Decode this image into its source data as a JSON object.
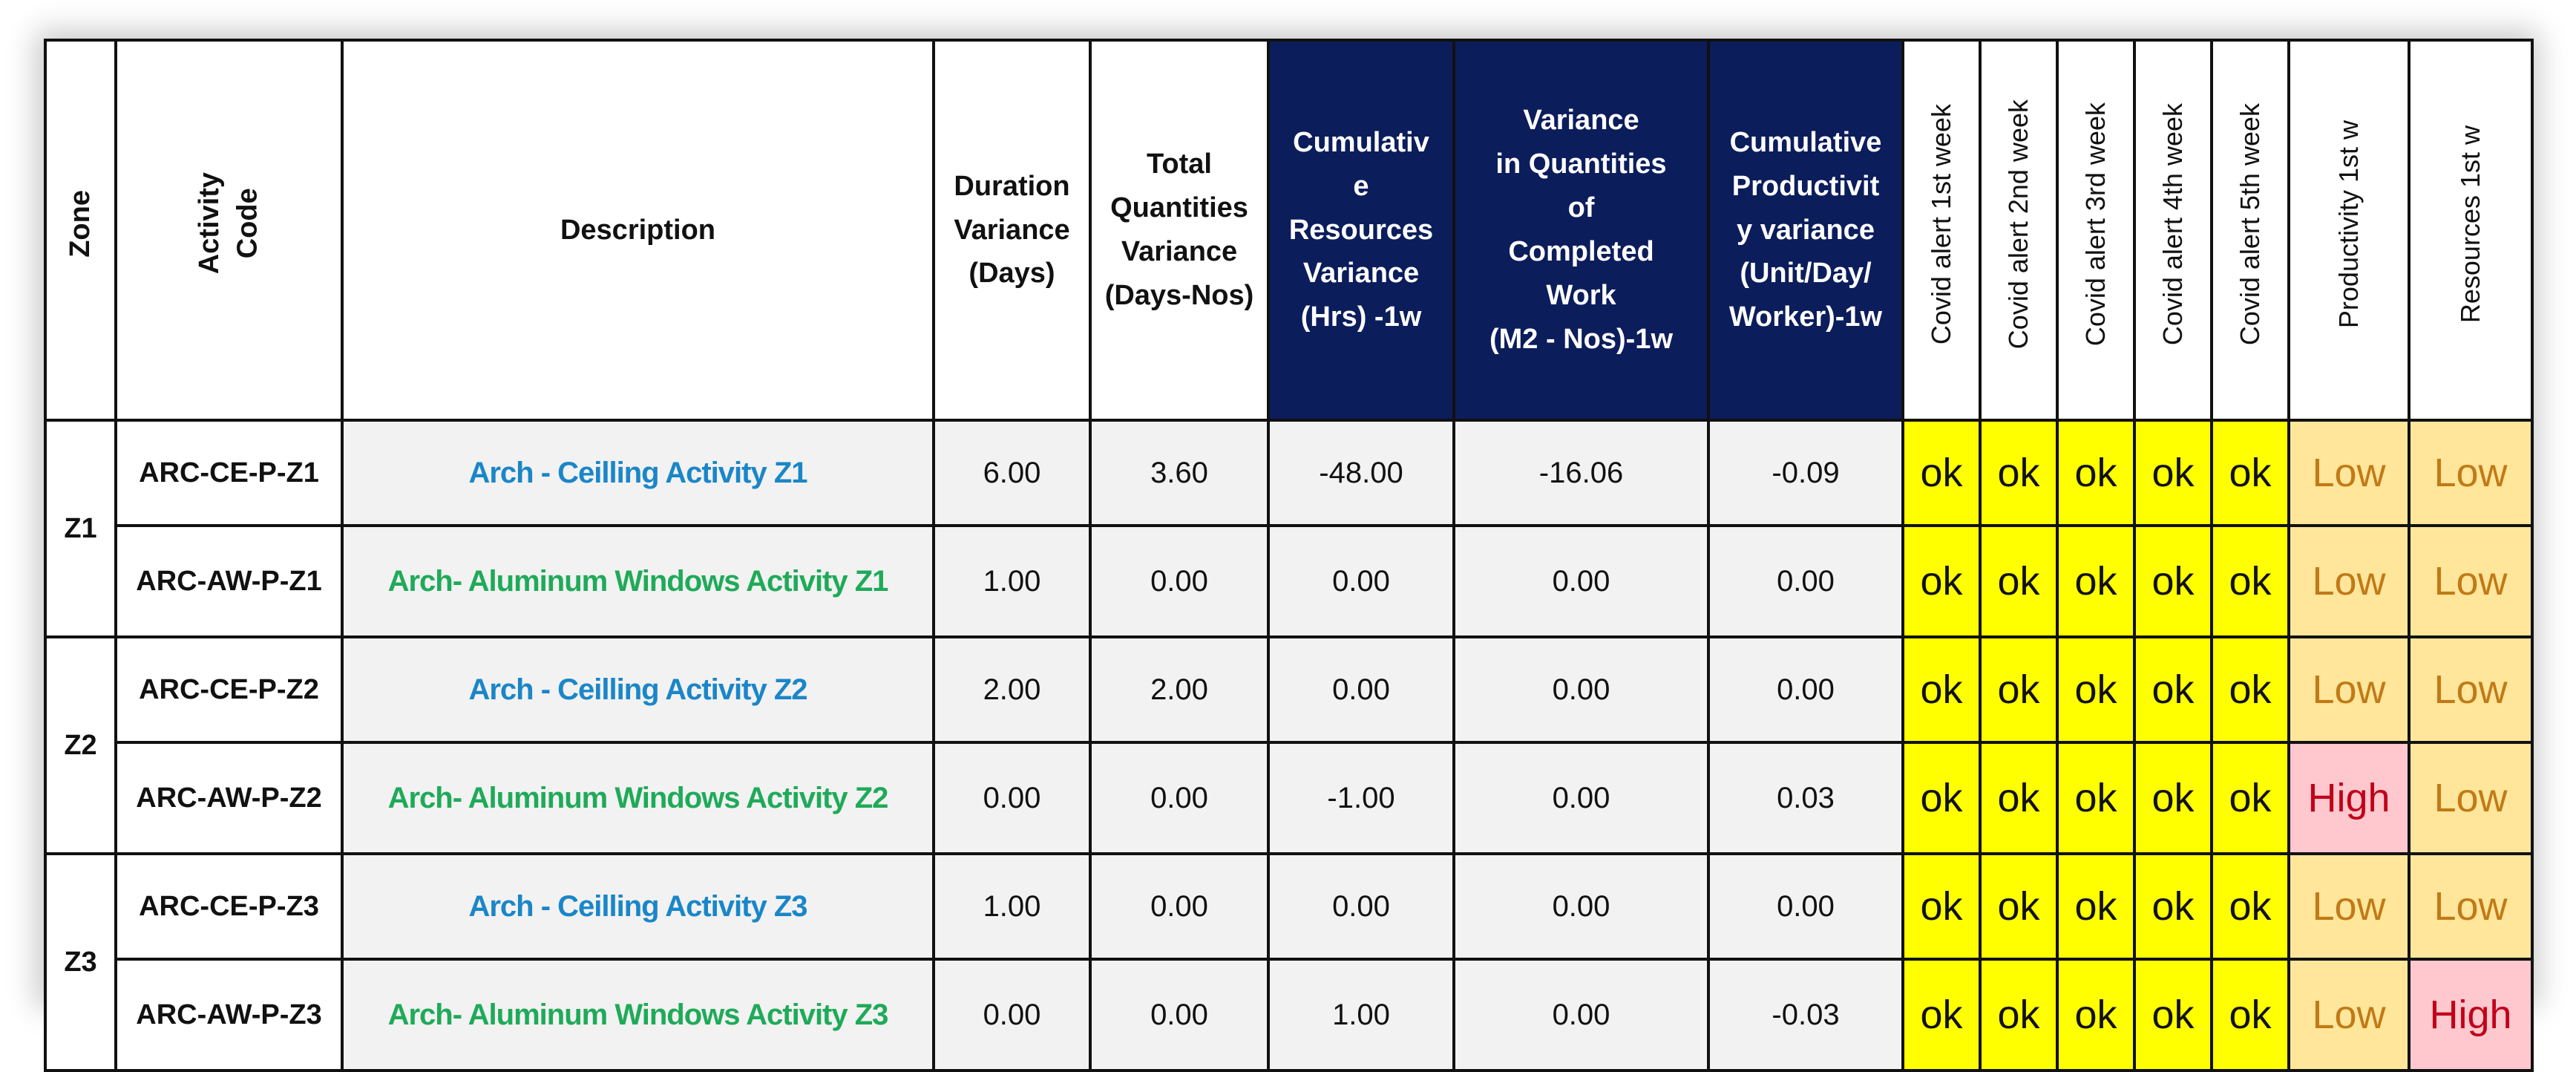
{
  "headers": {
    "zone": "Zone",
    "activity_code": [
      "Activity",
      "Code"
    ],
    "description": "Description",
    "duration_variance": [
      "Duration",
      "Variance",
      "(Days)"
    ],
    "total_quantities_variance": [
      "Total",
      "Quantities",
      "Variance",
      "(Days-Nos)"
    ],
    "cumulative_resources_variance": [
      "Cumulativ",
      "e",
      "Resources",
      "Variance",
      "(Hrs) -1w"
    ],
    "variance_quantities_completed": [
      "Variance",
      "in Quantities",
      "of",
      "Completed",
      "Work",
      "(M2 - Nos)-1w"
    ],
    "cumulative_productivity_variance": [
      "Cumulative",
      "Productivit",
      "y variance",
      "(Unit/Day/",
      "Worker)-1w"
    ],
    "covid_alert_1": "Covid alert 1st week",
    "covid_alert_2": "Covid alert 2nd week",
    "covid_alert_3": "Covid alert 3rd week",
    "covid_alert_4": "Covid alert 4th week",
    "covid_alert_5": "Covid alert 5th week",
    "productivity": "Productivity  1st w",
    "resources": "Resources  1st w"
  },
  "zones": [
    "Z1",
    "Z2",
    "Z3"
  ],
  "rows": [
    {
      "code": "ARC-CE-P-Z1",
      "description": "Arch - Ceilling Activity Z1",
      "duration_variance": "6.00",
      "total_quantities_variance": "3.60",
      "cumulative_resources_variance": "-48.00",
      "variance_quantities": "-16.06",
      "productivity_variance": "-0.09",
      "covid": [
        "ok",
        "ok",
        "ok",
        "ok",
        "ok"
      ],
      "productivity": "Low",
      "resources": "Low"
    },
    {
      "code": "ARC-AW-P-Z1",
      "description": "Arch- Aluminum Windows Activity Z1",
      "duration_variance": "1.00",
      "total_quantities_variance": "0.00",
      "cumulative_resources_variance": "0.00",
      "variance_quantities": "0.00",
      "productivity_variance": "0.00",
      "covid": [
        "ok",
        "ok",
        "ok",
        "ok",
        "ok"
      ],
      "productivity": "Low",
      "resources": "Low"
    },
    {
      "code": "ARC-CE-P-Z2",
      "description": "Arch - Ceilling Activity Z2",
      "duration_variance": "2.00",
      "total_quantities_variance": "2.00",
      "cumulative_resources_variance": "0.00",
      "variance_quantities": "0.00",
      "productivity_variance": "0.00",
      "covid": [
        "ok",
        "ok",
        "ok",
        "ok",
        "ok"
      ],
      "productivity": "Low",
      "resources": "Low"
    },
    {
      "code": "ARC-AW-P-Z2",
      "description": "Arch- Aluminum Windows Activity Z2",
      "duration_variance": "0.00",
      "total_quantities_variance": "0.00",
      "cumulative_resources_variance": "-1.00",
      "variance_quantities": "0.00",
      "productivity_variance": "0.03",
      "covid": [
        "ok",
        "ok",
        "ok",
        "ok",
        "ok"
      ],
      "productivity": "High",
      "resources": "Low"
    },
    {
      "code": "ARC-CE-P-Z3",
      "description": "Arch - Ceilling Activity Z3",
      "duration_variance": "1.00",
      "total_quantities_variance": "0.00",
      "cumulative_resources_variance": "0.00",
      "variance_quantities": "0.00",
      "productivity_variance": "0.00",
      "covid": [
        "ok",
        "ok",
        "ok",
        "ok",
        "ok"
      ],
      "productivity": "Low",
      "resources": "Low"
    },
    {
      "code": "ARC-AW-P-Z3",
      "description": "Arch- Aluminum Windows Activity Z3",
      "duration_variance": "0.00",
      "total_quantities_variance": "0.00",
      "cumulative_resources_variance": "1.00",
      "variance_quantities": "0.00",
      "productivity_variance": "-0.03",
      "covid": [
        "ok",
        "ok",
        "ok",
        "ok",
        "ok"
      ],
      "productivity": "Low",
      "resources": "High"
    }
  ],
  "colors": {
    "header_navy": "#0c1d5c",
    "ok_yellow": "#ffff00",
    "low_fill": "#ffe69b",
    "low_text": "#c07a16",
    "high_fill": "#ffc7ce",
    "high_text": "#c00018",
    "ceiling_text": "#1a86c8",
    "aluminum_text": "#1faa59"
  }
}
